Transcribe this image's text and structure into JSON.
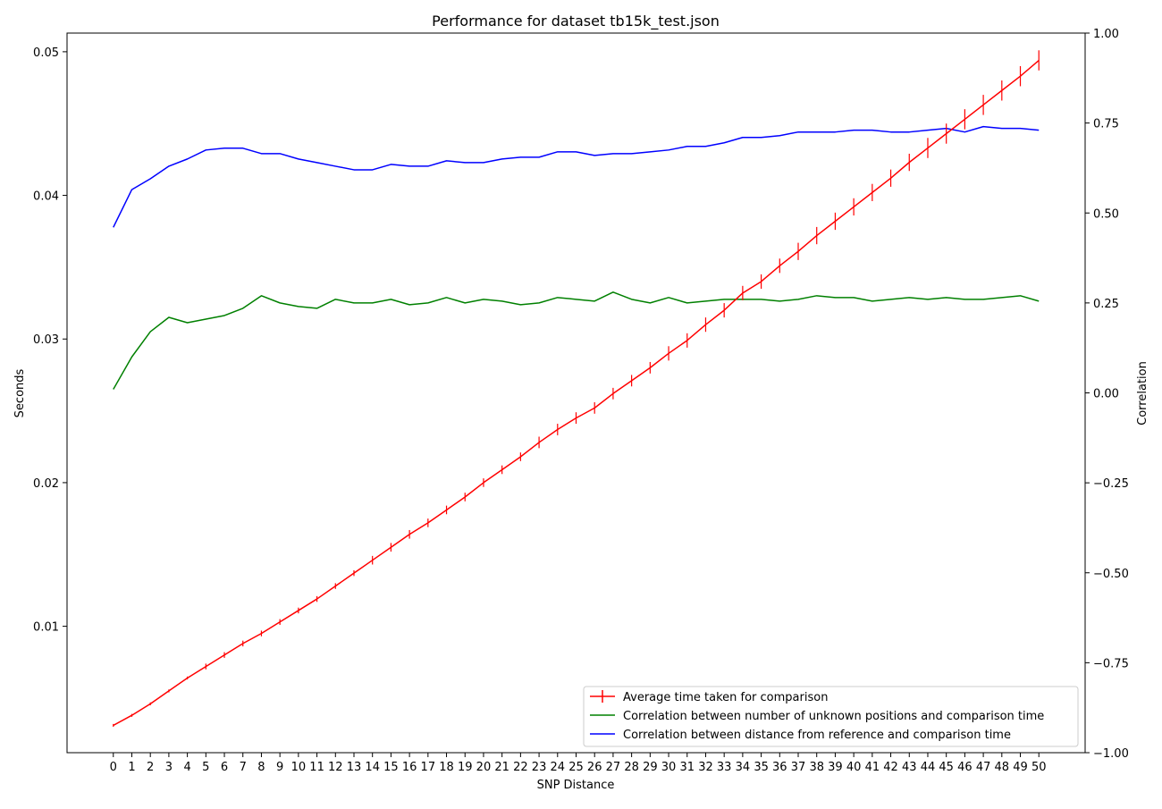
{
  "chart_data": {
    "type": "line",
    "title": "Performance for dataset tb15k_test.json",
    "xlabel": "SNP Distance",
    "ylabel": "Seconds",
    "ylabel_right": "Correlation",
    "x": [
      0,
      1,
      2,
      3,
      4,
      5,
      6,
      7,
      8,
      9,
      10,
      11,
      12,
      13,
      14,
      15,
      16,
      17,
      18,
      19,
      20,
      21,
      22,
      23,
      24,
      25,
      26,
      27,
      28,
      29,
      30,
      31,
      32,
      33,
      34,
      35,
      36,
      37,
      38,
      39,
      40,
      41,
      42,
      43,
      44,
      45,
      46,
      47,
      48,
      49,
      50
    ],
    "xlim": [
      -2.5,
      52.5
    ],
    "ylim_left": [
      0.0012,
      0.0513
    ],
    "ylim_right": [
      -1.0,
      1.0
    ],
    "yticks_left": [
      "0.01",
      "0.02",
      "0.03",
      "0.04",
      "0.05"
    ],
    "yticks_right": [
      "-1.00",
      "-0.75",
      "-0.50",
      "-0.25",
      "0.00",
      "0.25",
      "0.50",
      "0.75",
      "1.00"
    ],
    "legend_position": "lower-right",
    "series": [
      {
        "name": "Average time taken for comparison",
        "axis": "left",
        "color": "#ff0000",
        "marker": "|",
        "values": [
          0.0031,
          0.0038,
          0.0046,
          0.0055,
          0.0064,
          0.0072,
          0.008,
          0.0088,
          0.0095,
          0.0103,
          0.0111,
          0.0119,
          0.0128,
          0.0137,
          0.0146,
          0.0155,
          0.0164,
          0.0172,
          0.0181,
          0.019,
          0.02,
          0.0209,
          0.0218,
          0.0228,
          0.0237,
          0.0245,
          0.0252,
          0.0262,
          0.0271,
          0.028,
          0.029,
          0.0299,
          0.031,
          0.032,
          0.0332,
          0.034,
          0.0351,
          0.0361,
          0.0372,
          0.0382,
          0.0392,
          0.0402,
          0.0412,
          0.0423,
          0.0433,
          0.0443,
          0.0453,
          0.0463,
          0.0473,
          0.0483,
          0.0494
        ],
        "errors": [
          0.0001,
          0.0001,
          0.0001,
          0.0001,
          0.0001,
          0.0002,
          0.0002,
          0.0002,
          0.0002,
          0.0002,
          0.0002,
          0.0002,
          0.0002,
          0.0002,
          0.0003,
          0.0003,
          0.0003,
          0.0003,
          0.0003,
          0.0003,
          0.0003,
          0.0003,
          0.0003,
          0.0004,
          0.0004,
          0.0004,
          0.0004,
          0.0004,
          0.0004,
          0.0004,
          0.0005,
          0.0005,
          0.0005,
          0.0005,
          0.0005,
          0.0005,
          0.0005,
          0.0006,
          0.0006,
          0.0006,
          0.0006,
          0.0006,
          0.0006,
          0.0006,
          0.0007,
          0.0007,
          0.0007,
          0.0007,
          0.0007,
          0.0007,
          0.0007
        ]
      },
      {
        "name": "Correlation between number of unknown positions and comparison time",
        "axis": "right",
        "color": "#008000",
        "values": [
          0.01,
          0.1,
          0.17,
          0.21,
          0.195,
          0.205,
          0.215,
          0.235,
          0.27,
          0.25,
          0.24,
          0.235,
          0.26,
          0.25,
          0.25,
          0.26,
          0.245,
          0.25,
          0.265,
          0.25,
          0.26,
          0.255,
          0.245,
          0.25,
          0.265,
          0.26,
          0.255,
          0.28,
          0.26,
          0.25,
          0.265,
          0.25,
          0.255,
          0.26,
          0.26,
          0.26,
          0.255,
          0.26,
          0.27,
          0.265,
          0.265,
          0.255,
          0.26,
          0.265,
          0.26,
          0.265,
          0.26,
          0.26,
          0.265,
          0.27,
          0.255
        ]
      },
      {
        "name": "Correlation between distance from reference and comparison time",
        "axis": "right",
        "color": "#0000ff",
        "values": [
          0.46,
          0.565,
          0.595,
          0.63,
          0.65,
          0.675,
          0.68,
          0.68,
          0.665,
          0.665,
          0.65,
          0.64,
          0.63,
          0.62,
          0.62,
          0.635,
          0.63,
          0.63,
          0.645,
          0.64,
          0.64,
          0.65,
          0.655,
          0.655,
          0.67,
          0.67,
          0.66,
          0.665,
          0.665,
          0.67,
          0.675,
          0.685,
          0.685,
          0.695,
          0.71,
          0.71,
          0.715,
          0.725,
          0.725,
          0.725,
          0.73,
          0.73,
          0.725,
          0.725,
          0.73,
          0.735,
          0.725,
          0.74,
          0.735,
          0.735,
          0.73
        ]
      }
    ]
  }
}
